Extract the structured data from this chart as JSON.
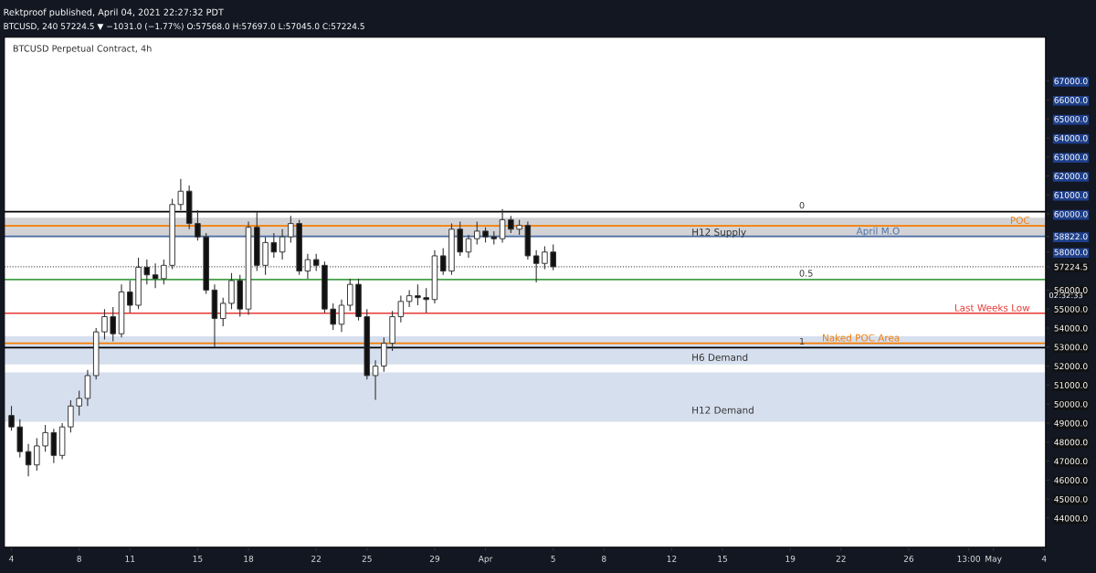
{
  "chart_data": {
    "type": "candlestick",
    "title": "BTCUSD Perpetual Contract, 4h",
    "annotations": [
      "Rektproof published, April 04, 2021 22:27:32 PDT",
      "BTCUSD, 240 57224.5 ▼ −1031.0 (−1.77%) O:57568.0 H:57697.0 L:57045.0 C:57224.5",
      "02:32:33",
      {
        "text": "0",
        "x": "2021-04-19T09:00",
        "y": 60125
      },
      {
        "text": "0.5",
        "x": "2021-04-19T09:00",
        "y": 56550
      },
      {
        "text": "1",
        "x": "2021-04-19T09:00",
        "y": 52970
      }
    ],
    "x": [
      "2021-03-04T00:00",
      "2021-03-04T12:00",
      "2021-03-05T00:00",
      "2021-03-05T12:00",
      "2021-03-06T00:00",
      "2021-03-06T12:00",
      "2021-03-07T00:00",
      "2021-03-07T12:00",
      "2021-03-08T00:00",
      "2021-03-08T12:00",
      "2021-03-09T00:00",
      "2021-03-09T12:00",
      "2021-03-10T00:00",
      "2021-03-10T12:00",
      "2021-03-11T00:00",
      "2021-03-11T12:00",
      "2021-03-12T00:00",
      "2021-03-12T12:00",
      "2021-03-13T00:00",
      "2021-03-13T12:00",
      "2021-03-14T00:00",
      "2021-03-14T12:00",
      "2021-03-15T00:00",
      "2021-03-15T12:00",
      "2021-03-16T00:00",
      "2021-03-16T12:00",
      "2021-03-17T00:00",
      "2021-03-17T12:00",
      "2021-03-18T00:00",
      "2021-03-18T12:00",
      "2021-03-19T00:00",
      "2021-03-19T12:00",
      "2021-03-20T00:00",
      "2021-03-20T12:00",
      "2021-03-21T00:00",
      "2021-03-21T12:00",
      "2021-03-22T00:00",
      "2021-03-22T12:00",
      "2021-03-23T00:00",
      "2021-03-23T12:00",
      "2021-03-24T00:00",
      "2021-03-24T12:00",
      "2021-03-25T00:00",
      "2021-03-25T12:00",
      "2021-03-26T00:00",
      "2021-03-26T12:00",
      "2021-03-27T00:00",
      "2021-03-27T12:00",
      "2021-03-28T00:00",
      "2021-03-28T12:00",
      "2021-03-29T00:00",
      "2021-03-29T12:00",
      "2021-03-30T00:00",
      "2021-03-30T12:00",
      "2021-03-31T00:00",
      "2021-03-31T12:00",
      "2021-04-01T00:00",
      "2021-04-01T12:00",
      "2021-04-02T00:00",
      "2021-04-02T12:00",
      "2021-04-03T00:00",
      "2021-04-03T12:00",
      "2021-04-04T00:00",
      "2021-04-04T12:00",
      "2021-04-05T00:00"
    ],
    "ohlc": [
      [
        49400,
        49900,
        48600,
        48800
      ],
      [
        48800,
        49200,
        47200,
        47500
      ],
      [
        47500,
        47900,
        46200,
        46800
      ],
      [
        46800,
        48200,
        46500,
        47800
      ],
      [
        47800,
        48900,
        47500,
        48500
      ],
      [
        48500,
        48700,
        46900,
        47300
      ],
      [
        47300,
        49000,
        47100,
        48800
      ],
      [
        48800,
        50200,
        48500,
        49900
      ],
      [
        49900,
        50700,
        49400,
        50300
      ],
      [
        50300,
        51800,
        49900,
        51500
      ],
      [
        51500,
        54000,
        51300,
        53800
      ],
      [
        53800,
        55000,
        53400,
        54600
      ],
      [
        54600,
        55100,
        53300,
        53700
      ],
      [
        53700,
        56300,
        53500,
        55900
      ],
      [
        55900,
        56500,
        54800,
        55200
      ],
      [
        55200,
        57700,
        55000,
        57200
      ],
      [
        57200,
        57600,
        56300,
        56800
      ],
      [
        56800,
        57400,
        56100,
        56600
      ],
      [
        56600,
        57600,
        56300,
        57300
      ],
      [
        57300,
        60800,
        57100,
        60500
      ],
      [
        60500,
        61850,
        60200,
        61200
      ],
      [
        61200,
        61500,
        59200,
        59500
      ],
      [
        59500,
        60200,
        58600,
        58800
      ],
      [
        58800,
        59000,
        55800,
        56000
      ],
      [
        56000,
        56300,
        53000,
        54500
      ],
      [
        54500,
        55600,
        54100,
        55300
      ],
      [
        55300,
        56900,
        55000,
        56500
      ],
      [
        56500,
        56800,
        54600,
        55000
      ],
      [
        55000,
        59600,
        54700,
        59300
      ],
      [
        59300,
        60100,
        57000,
        57300
      ],
      [
        57300,
        58800,
        56800,
        58500
      ],
      [
        58500,
        59000,
        57700,
        58000
      ],
      [
        58000,
        59200,
        57600,
        58800
      ],
      [
        58800,
        59900,
        58500,
        59500
      ],
      [
        59500,
        59700,
        56800,
        57000
      ],
      [
        57000,
        57900,
        56600,
        57600
      ],
      [
        57600,
        57900,
        57000,
        57300
      ],
      [
        57300,
        57500,
        54800,
        55000
      ],
      [
        55000,
        55300,
        53900,
        54200
      ],
      [
        54200,
        55500,
        53800,
        55200
      ],
      [
        55200,
        56600,
        54900,
        56300
      ],
      [
        56300,
        56600,
        54400,
        54600
      ],
      [
        54600,
        55000,
        51300,
        51500
      ],
      [
        51500,
        52300,
        50230,
        52000
      ],
      [
        52000,
        53500,
        51700,
        53200
      ],
      [
        53200,
        54900,
        52800,
        54600
      ],
      [
        54600,
        55700,
        54300,
        55400
      ],
      [
        55400,
        56000,
        55100,
        55700
      ],
      [
        55700,
        56300,
        55200,
        55600
      ],
      [
        55600,
        56100,
        54800,
        55500
      ],
      [
        55500,
        58100,
        55300,
        57800
      ],
      [
        57800,
        58200,
        56800,
        57000
      ],
      [
        57000,
        59500,
        56800,
        59200
      ],
      [
        59200,
        59600,
        57800,
        58000
      ],
      [
        58000,
        58900,
        57700,
        58700
      ],
      [
        58700,
        59600,
        58400,
        59100
      ],
      [
        59100,
        59300,
        58500,
        58800
      ],
      [
        58800,
        59100,
        58400,
        58700
      ],
      [
        58700,
        60260,
        58500,
        59700
      ],
      [
        59700,
        59900,
        59000,
        59200
      ],
      [
        59200,
        59700,
        58900,
        59400
      ],
      [
        59400,
        59600,
        57600,
        57800
      ],
      [
        57800,
        58100,
        56400,
        57400
      ],
      [
        57400,
        58300,
        57100,
        58000
      ],
      [
        58000,
        58400,
        57045,
        57224.5
      ]
    ],
    "ylim": [
      42470,
      69300
    ],
    "yticks": [
      {
        "value": 44000,
        "label": "44000.0"
      },
      {
        "value": 45000,
        "label": "45000.0"
      },
      {
        "value": 46000,
        "label": "46000.0"
      },
      {
        "value": 47000,
        "label": "47000.0"
      },
      {
        "value": 48000,
        "label": "48000.0"
      },
      {
        "value": 49000,
        "label": "49000.0"
      },
      {
        "value": 50000,
        "label": "50000.0"
      },
      {
        "value": 51000,
        "label": "51000.0"
      },
      {
        "value": 52000,
        "label": "52000.0"
      },
      {
        "value": 53000,
        "label": "53000.0"
      },
      {
        "value": 54000,
        "label": "54000.0"
      },
      {
        "value": 55000,
        "label": "55000.0"
      },
      {
        "value": 56000,
        "label": "56000.0"
      },
      {
        "value": 57224.5,
        "label": "57224.5"
      },
      {
        "value": 58000,
        "label": "58000.0"
      },
      {
        "value": 58822,
        "label": "58822.0"
      },
      {
        "value": 60000,
        "label": "60000.0"
      },
      {
        "value": 61000,
        "label": "61000.0"
      },
      {
        "value": 62000,
        "label": "62000.0"
      },
      {
        "value": 63000,
        "label": "63000.0"
      },
      {
        "value": 64000,
        "label": "64000.0"
      },
      {
        "value": 65000,
        "label": "65000.0"
      },
      {
        "value": 66000,
        "label": "66000.0"
      },
      {
        "value": 67000,
        "label": "67000.0"
      }
    ],
    "xlim": [
      "2021-03-03T14:00",
      "2021-05-04T02:00"
    ],
    "xticks": [
      {
        "value": "2021-03-04",
        "label": "4"
      },
      {
        "value": "2021-03-08",
        "label": "8"
      },
      {
        "value": "2021-03-11",
        "label": "11"
      },
      {
        "value": "2021-03-15",
        "label": "15"
      },
      {
        "value": "2021-03-18",
        "label": "18"
      },
      {
        "value": "2021-03-22",
        "label": "22"
      },
      {
        "value": "2021-03-25",
        "label": "25"
      },
      {
        "value": "2021-03-29",
        "label": "29"
      },
      {
        "value": "2021-04-01",
        "label": "Apr"
      },
      {
        "value": "2021-04-05",
        "label": "5"
      },
      {
        "value": "2021-04-08",
        "label": "8"
      },
      {
        "value": "2021-04-12",
        "label": "12"
      },
      {
        "value": "2021-04-15",
        "label": "15"
      },
      {
        "value": "2021-04-19",
        "label": "19"
      },
      {
        "value": "2021-04-22",
        "label": "22"
      },
      {
        "value": "2021-04-26",
        "label": "26"
      },
      {
        "value": "2021-04-29T13:00",
        "label": "13:00"
      },
      {
        "value": "2021-05-01",
        "label": "May"
      },
      {
        "value": "2021-05-04",
        "label": "4"
      }
    ],
    "ref_lines": [
      {
        "axis": "y",
        "value": 60125,
        "color": "#000000"
      },
      {
        "axis": "y",
        "value": 59380,
        "label": "POC",
        "color": "#f57c00"
      },
      {
        "axis": "y",
        "value": 58822,
        "label": "April M.O",
        "color": "#4a6fa5"
      },
      {
        "axis": "y",
        "value": 56550,
        "color": "#43a047"
      },
      {
        "axis": "y",
        "value": 54780,
        "label": "Last Weeks Low",
        "color": "#e53935"
      },
      {
        "axis": "y",
        "value": 53200,
        "label": "Naked POC Area",
        "color": "#f57c00"
      },
      {
        "axis": "y",
        "value": 52970,
        "color": "#000000"
      },
      {
        "axis": "y",
        "value": 57224.5,
        "color": "#555555",
        "line_style": "dotted"
      }
    ],
    "bands": [
      {
        "axis": "y",
        "from": 58780,
        "to": 59800,
        "label": "H12 Supply",
        "color": "#c4c4c8"
      },
      {
        "axis": "y",
        "from": 52090,
        "to": 53570,
        "label": "H6 Demand",
        "color": "#c8d4e8"
      },
      {
        "axis": "y",
        "from": 49070,
        "to": 51670,
        "label": "H12 Demand",
        "color": "#c8d4e8"
      }
    ],
    "grid": false,
    "legend": false
  }
}
